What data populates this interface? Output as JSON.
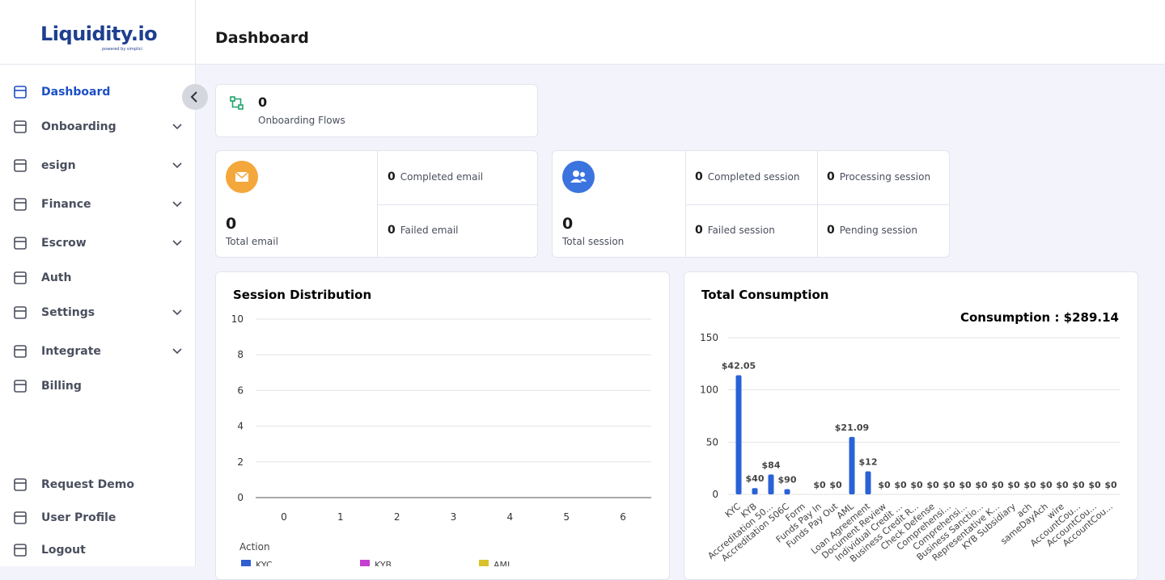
{
  "brand": {
    "name": "Liquidity.io",
    "tagline": "powered by simplici"
  },
  "header": {
    "title": "Dashboard"
  },
  "sidebar": {
    "nav": [
      {
        "label": "Dashboard",
        "expandable": false,
        "active": true
      },
      {
        "label": "Onboarding",
        "expandable": true
      },
      {
        "label": "esign",
        "expandable": true
      },
      {
        "label": "Finance",
        "expandable": true
      },
      {
        "label": "Escrow",
        "expandable": true
      },
      {
        "label": "Auth",
        "expandable": false
      },
      {
        "label": "Settings",
        "expandable": true
      },
      {
        "label": "Integrate",
        "expandable": true
      },
      {
        "label": "Billing",
        "expandable": false
      }
    ],
    "footer": [
      {
        "label": "Request Demo"
      },
      {
        "label": "User Profile"
      },
      {
        "label": "Logout"
      }
    ]
  },
  "stats": {
    "onboarding": {
      "value": 0,
      "label": "Onboarding Flows"
    },
    "email": {
      "total": {
        "value": 0,
        "label": "Total email"
      },
      "items": [
        {
          "value": 0,
          "label": "Completed email"
        },
        {
          "value": 0,
          "label": "Failed email"
        }
      ]
    },
    "session": {
      "total": {
        "value": 0,
        "label": "Total session"
      },
      "items": [
        {
          "value": 0,
          "label": "Completed session"
        },
        {
          "value": 0,
          "label": "Processing session"
        },
        {
          "value": 0,
          "label": "Failed session"
        },
        {
          "value": 0,
          "label": "Pending session"
        }
      ]
    }
  },
  "chart_data": [
    {
      "type": "line",
      "title": "Session Distribution",
      "xlim": [
        -0.5,
        6.5
      ],
      "xticks": [
        0,
        1,
        2,
        3,
        4,
        5,
        6
      ],
      "ylim": [
        0,
        10
      ],
      "yticks": [
        0,
        2,
        4,
        6,
        8,
        10
      ],
      "grid": true,
      "legend_title": "Action",
      "legend": "bottom",
      "series": [
        {
          "name": "KYC",
          "color": "#2f5fd0"
        },
        {
          "name": "KYB",
          "color": "#c43fcf"
        },
        {
          "name": "AML",
          "color": "#d9c22b"
        }
      ]
    },
    {
      "type": "bar",
      "title": "Total Consumption",
      "subtitle": "Consumption : $289.14",
      "categories": [
        "KYC",
        "KYB",
        "Accreditation 50...",
        "Accreditation 506C",
        "Form",
        "Funds Pay In",
        "Funds Pay Out",
        "AML",
        "Loan Agreement",
        "Document Review",
        "Individual Credit ...",
        "Business Credit R...",
        "Check Defense",
        "Comprehensi...",
        "Comprehensi...",
        "Business Sanctio...",
        "Representative K...",
        "KYB Subsidiary",
        "ach",
        "sameDayAch",
        "wire",
        "AccountCou...",
        "AccountCou...",
        "AccountCou..."
      ],
      "values": [
        114,
        6,
        19,
        5,
        0,
        0,
        0,
        55,
        22,
        0,
        0,
        0,
        0,
        0,
        0,
        0,
        0,
        0,
        0,
        0,
        0,
        0,
        0,
        0
      ],
      "amount_labels": [
        "$42.05",
        "$40",
        "$84",
        "$90",
        null,
        "$0",
        "$0",
        "$21.09",
        "$12",
        "$0",
        "$0",
        "$0",
        "$0",
        "$0",
        "$0",
        "$0",
        "$0",
        "$0",
        "$0",
        "$0",
        "$0",
        "$0",
        "$0",
        "$0"
      ],
      "color": "#2a62d6",
      "ylim": [
        0,
        150
      ],
      "yticks": [
        0,
        50,
        100,
        150
      ],
      "grid": true
    }
  ]
}
